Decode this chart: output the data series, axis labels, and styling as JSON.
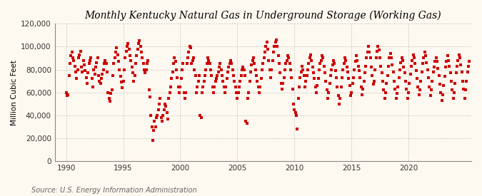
{
  "title": "Monthly Kentucky Natural Gas in Underground Storage (Working Gas)",
  "ylabel": "Million Cubic Feet",
  "source": "Source: U.S. Energy Information Administration",
  "background_color": "#fef9f0",
  "plot_background_color": "#fef9f0",
  "marker_color": "#cc0000",
  "marker_size": 3.5,
  "marker_shape": "s",
  "ylim": [
    0,
    120000
  ],
  "yticks": [
    0,
    20000,
    40000,
    60000,
    80000,
    100000,
    120000
  ],
  "ytick_labels": [
    "0",
    "20,000",
    "40,000",
    "60,000",
    "80,000",
    "100,000",
    "120,000"
  ],
  "xlim_start": 1989.0,
  "xlim_end": 2025.5,
  "xticks": [
    1990,
    1995,
    2000,
    2005,
    2010,
    2015,
    2020
  ],
  "title_fontsize": 10,
  "axis_fontsize": 7.5,
  "source_fontsize": 7,
  "grid_color": "#b0b0b0",
  "grid_style": "--",
  "data": [
    60000,
    57000,
    58000,
    75000,
    85000,
    92000,
    95000,
    90000,
    88000,
    83000,
    78000,
    72000,
    80000,
    90000,
    93000,
    96000,
    82000,
    78000,
    88000,
    84000,
    79000,
    73000,
    68000,
    77000,
    85000,
    88000,
    90000,
    72000,
    65000,
    80000,
    76000,
    82000,
    86000,
    90000,
    75000,
    70000,
    68000,
    72000,
    76000,
    80000,
    85000,
    88000,
    85000,
    78000,
    60000,
    55000,
    52000,
    59000,
    62000,
    75000,
    85000,
    90000,
    95000,
    99000,
    93000,
    87000,
    80000,
    74000,
    69000,
    64000,
    70000,
    80000,
    90000,
    96000,
    100000,
    103000,
    98000,
    92000,
    88000,
    82000,
    77000,
    70000,
    75000,
    85000,
    92000,
    98000,
    103000,
    105000,
    100000,
    95000,
    90000,
    85000,
    80000,
    77000,
    80000,
    85000,
    88000,
    62000,
    56000,
    40000,
    30000,
    18000,
    27000,
    35000,
    30000,
    38000,
    40000,
    45000,
    50000,
    55000,
    38000,
    35000,
    40000,
    45000,
    50000,
    48000,
    42000,
    37000,
    55000,
    60000,
    65000,
    72000,
    78000,
    85000,
    90000,
    87000,
    80000,
    73000,
    65000,
    60000,
    65000,
    72000,
    80000,
    85000,
    60000,
    55000,
    60000,
    85000,
    90000,
    95000,
    100000,
    99000,
    85000,
    88000,
    90000,
    80000,
    75000,
    60000,
    65000,
    70000,
    75000,
    40000,
    38000,
    60000,
    65000,
    70000,
    75000,
    80000,
    85000,
    90000,
    88000,
    85000,
    80000,
    75000,
    65000,
    60000,
    65000,
    70000,
    72000,
    75000,
    78000,
    82000,
    85000,
    80000,
    75000,
    70000,
    65000,
    60000,
    65000,
    72000,
    78000,
    82000,
    85000,
    88000,
    85000,
    80000,
    75000,
    70000,
    65000,
    60000,
    55000,
    60000,
    65000,
    70000,
    75000,
    80000,
    82000,
    80000,
    75000,
    35000,
    33000,
    55000,
    60000,
    70000,
    78000,
    84000,
    88000,
    90000,
    85000,
    80000,
    75000,
    70000,
    65000,
    60000,
    65000,
    72000,
    80000,
    85000,
    90000,
    95000,
    100000,
    104000,
    98000,
    88000,
    80000,
    73000,
    80000,
    88000,
    95000,
    100000,
    104000,
    106000,
    100000,
    92000,
    85000,
    77000,
    68000,
    63000,
    68000,
    73000,
    80000,
    85000,
    88000,
    92000,
    90000,
    85000,
    80000,
    73000,
    63000,
    50000,
    45000,
    42000,
    40000,
    28000,
    55000,
    65000,
    73000,
    78000,
    83000,
    80000,
    75000,
    65000,
    70000,
    75000,
    80000,
    85000,
    90000,
    93000,
    88000,
    82000,
    77000,
    72000,
    65000,
    60000,
    66000,
    72000,
    80000,
    85000,
    88000,
    92000,
    90000,
    83000,
    77000,
    70000,
    62000,
    55000,
    60000,
    68000,
    75000,
    80000,
    84000,
    88000,
    85000,
    79000,
    73000,
    65000,
    57000,
    50000,
    55000,
    65000,
    73000,
    80000,
    85000,
    90000,
    88000,
    82000,
    78000,
    72000,
    66000,
    57000,
    60000,
    68000,
    73000,
    80000,
    87000,
    92000,
    88000,
    83000,
    79000,
    73000,
    65000,
    58000,
    63000,
    70000,
    77000,
    83000,
    90000,
    95000,
    100000,
    95000,
    90000,
    82000,
    75000,
    67000,
    70000,
    80000,
    90000,
    96000,
    100000,
    97000,
    90000,
    83000,
    77000,
    70000,
    62000,
    55000,
    60000,
    68000,
    75000,
    83000,
    90000,
    94000,
    90000,
    84000,
    78000,
    70000,
    63000,
    55000,
    59000,
    65000,
    73000,
    80000,
    86000,
    90000,
    88000,
    82000,
    77000,
    70000,
    63000,
    55000,
    60000,
    68000,
    76000,
    83000,
    88000,
    93000,
    90000,
    85000,
    79000,
    72000,
    65000,
    58000,
    62000,
    70000,
    78000,
    85000,
    90000,
    95000,
    92000,
    86000,
    80000,
    73000,
    65000,
    57000,
    62000,
    70000,
    78000,
    82000,
    87000,
    90000,
    87000,
    81000,
    75000,
    67000,
    60000,
    53000,
    58000,
    66000,
    74000,
    82000,
    87000,
    92000,
    88000,
    83000,
    77000,
    70000,
    62000,
    55000,
    60000,
    68000,
    77000,
    83000,
    88000,
    93000,
    90000,
    84000,
    78000,
    70000,
    63000,
    55000,
    62000,
    70000,
    78000,
    83000,
    87000
  ]
}
